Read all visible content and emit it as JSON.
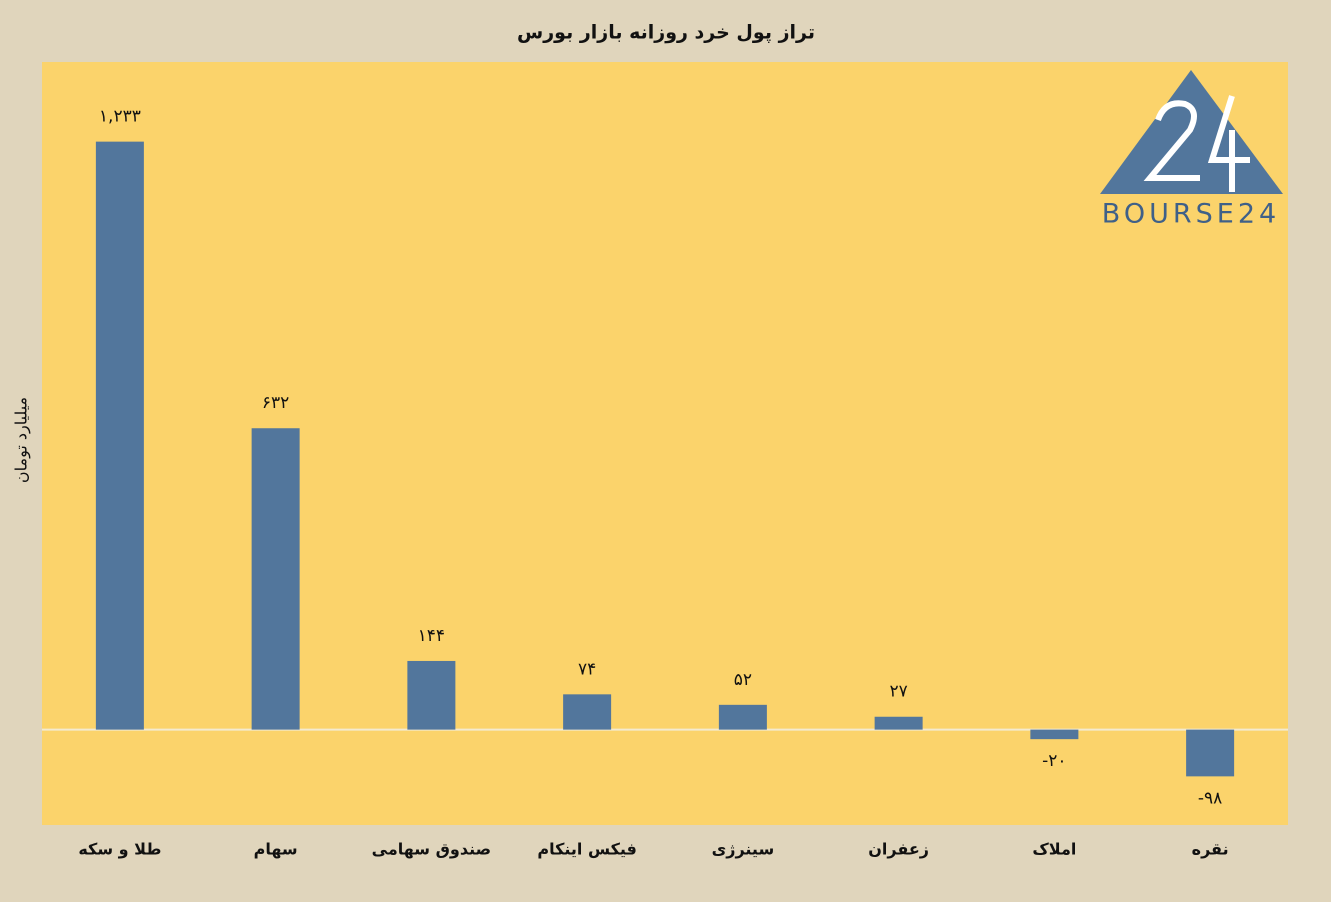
{
  "chart_data": {
    "type": "bar",
    "title": "تراز پول خرد روزانه بازار بورس",
    "y_label": "میلیارد تومان",
    "categories": [
      "طلا و سکه",
      "سهام",
      "صندوق سهامی",
      "فیکس اینکام",
      "سینرژی",
      "زعفران",
      "املاک",
      "نقره"
    ],
    "values": [
      1233,
      632,
      144,
      74,
      52,
      27,
      -20,
      -98
    ],
    "value_labels": [
      "۱,۲۳۳",
      "۶۳۲",
      "۱۴۴",
      "۷۴",
      "۵۲",
      "۲۷",
      "-۲۰",
      "-۹۸"
    ],
    "color": "#52769c",
    "ylim": [
      -200,
      1400
    ]
  },
  "logo": {
    "text": "BOURSE24"
  }
}
